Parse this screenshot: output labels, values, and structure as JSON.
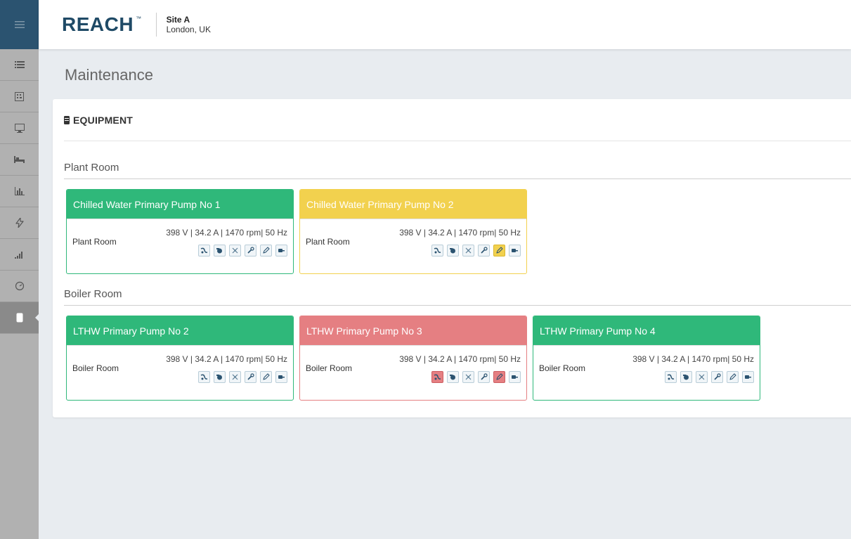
{
  "colors": {
    "brand": "#1f4a66",
    "ok": "#2fb87a",
    "warning": "#f2d14e",
    "alarm": "#e57f82",
    "sidebar": "#b1b1b1",
    "sidebar_top": "#2b5370"
  },
  "sidebar": {
    "menu_icon": "hamburger-icon",
    "items": [
      {
        "icon": "list-icon",
        "active": false
      },
      {
        "icon": "dashboard-grid-icon",
        "active": false
      },
      {
        "icon": "monitor-icon",
        "active": false
      },
      {
        "icon": "bed-icon",
        "active": false
      },
      {
        "icon": "bar-chart-icon",
        "active": false
      },
      {
        "icon": "lightning-icon",
        "active": false
      },
      {
        "icon": "signal-bars-icon",
        "active": false
      },
      {
        "icon": "gauge-icon",
        "active": false
      },
      {
        "icon": "equipment-icon",
        "active": true
      }
    ]
  },
  "header": {
    "logo_text": "REACH",
    "logo_tm": "™",
    "site_name": "Site A",
    "site_location": "London, UK"
  },
  "page": {
    "title": "Maintenance"
  },
  "panel": {
    "title": "EQUIPMENT",
    "icon": "equipment-icon"
  },
  "action_icons": [
    "valve-icon",
    "pump-icon",
    "fan-icon",
    "wrench-icon",
    "pencil-icon",
    "motor-icon"
  ],
  "groups": [
    {
      "name": "Plant Room",
      "cards": [
        {
          "title": "Chilled Water Primary Pump No 1",
          "status": "ok",
          "location": "Plant Room",
          "readings": "398 V | 34.2 A | 1470 rpm| 50 Hz",
          "alerts": []
        },
        {
          "title": "Chilled Water Primary Pump No 2",
          "status": "warning",
          "location": "Plant Room",
          "readings": "398 V | 34.2 A | 1470 rpm| 50 Hz",
          "alerts": [
            {
              "icon": "pencil-icon",
              "level": "warning"
            }
          ]
        }
      ]
    },
    {
      "name": "Boiler Room",
      "cards": [
        {
          "title": "LTHW Primary Pump No 2",
          "status": "ok",
          "location": "Boiler Room",
          "readings": "398 V | 34.2 A | 1470 rpm| 50 Hz",
          "alerts": []
        },
        {
          "title": "LTHW Primary Pump No 3",
          "status": "alarm",
          "location": "Boiler Room",
          "readings": "398 V | 34.2 A | 1470 rpm| 50 Hz",
          "alerts": [
            {
              "icon": "valve-icon",
              "level": "alarm"
            },
            {
              "icon": "pencil-icon",
              "level": "alarm"
            }
          ]
        },
        {
          "title": "LTHW Primary Pump No 4",
          "status": "ok",
          "location": "Boiler Room",
          "readings": "398 V | 34.2 A | 1470 rpm| 50 Hz",
          "alerts": []
        }
      ]
    }
  ]
}
